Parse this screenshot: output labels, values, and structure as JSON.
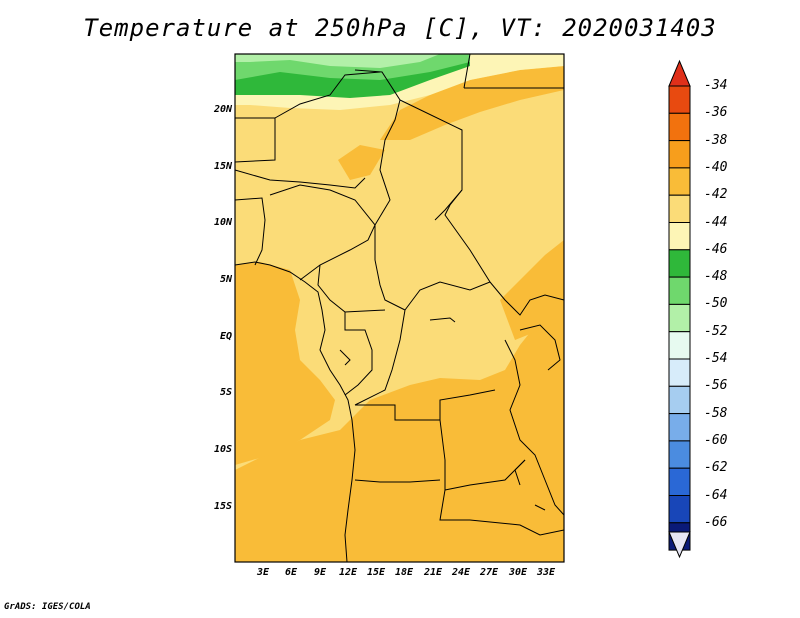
{
  "title": "Temperature at 250hPa [C], VT: 2020031403",
  "credit": "GrADS: IGES/COLA",
  "map": {
    "lat_labels": [
      "20N",
      "15N",
      "10N",
      "5N",
      "EQ",
      "5S",
      "10S",
      "15S"
    ],
    "lon_labels": [
      "3E",
      "6E",
      "9E",
      "12E",
      "15E",
      "18E",
      "21E",
      "24E",
      "27E",
      "30E",
      "33E"
    ]
  },
  "colorbar": {
    "levels": [
      "-34",
      "-36",
      "-38",
      "-40",
      "-42",
      "-44",
      "-46",
      "-48",
      "-50",
      "-52",
      "-54",
      "-56",
      "-58",
      "-60",
      "-62",
      "-64",
      "-66"
    ],
    "colors": [
      "#e84a10",
      "#f2720e",
      "#f79e1c",
      "#f9bc38",
      "#fbdc78",
      "#fdf5b6",
      "#2fb83a",
      "#6fd86d",
      "#b2f0a8",
      "#e7faf0",
      "#d7ecfa",
      "#a6cdf0",
      "#78adea",
      "#4b8ce0",
      "#2a68d6",
      "#1846b8",
      "#0a1a78"
    ],
    "top_triangle_color": "#e0301a",
    "bottom_triangle_color": "#e6e6f4"
  }
}
